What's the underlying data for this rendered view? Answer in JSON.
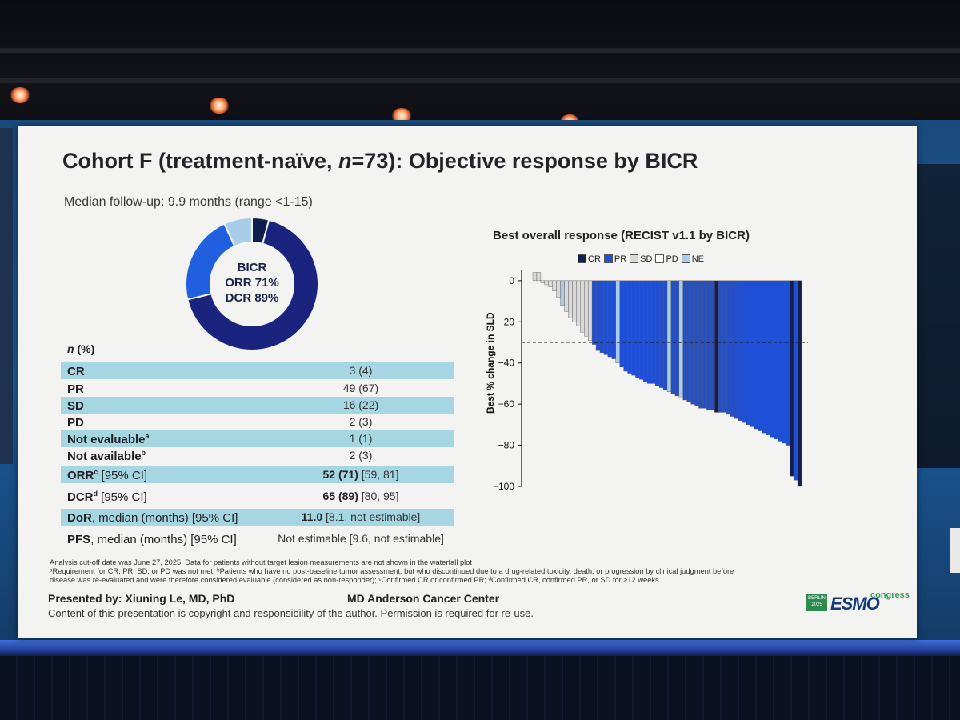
{
  "slide": {
    "title_prefix": "Cohort F (treatment-naïve, ",
    "title_n": "n",
    "title_suffix": "=73): Objective response by BICR",
    "followup": "Median follow-up: 9.9 months (range <1-15)",
    "donut": {
      "label1": "BICR",
      "label2": "ORR 71%",
      "label3": "DCR 89%",
      "segments": [
        {
          "name": "CR",
          "value": 3,
          "color": "#0d1f4a"
        },
        {
          "name": "PR",
          "value": 49,
          "color": "#1a237e"
        },
        {
          "name": "SD",
          "value": 16,
          "color": "#1f5fe0"
        },
        {
          "name": "Other",
          "value": 5,
          "color": "#a9cde6"
        }
      ]
    },
    "table": {
      "header_n": "n",
      "header_pct": " (%)",
      "rows": [
        {
          "label": "CR",
          "sup": "",
          "suffix": "",
          "value": "3 (4)",
          "bold_value": "",
          "highlight": true
        },
        {
          "label": "PR",
          "sup": "",
          "suffix": "",
          "value": "49 (67)",
          "bold_value": "",
          "highlight": false
        },
        {
          "label": "SD",
          "sup": "",
          "suffix": "",
          "value": "16 (22)",
          "bold_value": "",
          "highlight": true
        },
        {
          "label": "PD",
          "sup": "",
          "suffix": "",
          "value": "2 (3)",
          "bold_value": "",
          "highlight": false
        },
        {
          "label": "Not evaluable",
          "sup": "a",
          "suffix": "",
          "value": "1 (1)",
          "bold_value": "",
          "highlight": true
        },
        {
          "label": "Not available",
          "sup": "b",
          "suffix": "",
          "value": "2 (3)",
          "bold_value": "",
          "highlight": false
        },
        {
          "label": "ORR",
          "sup": "c",
          "suffix": " [95% CI]",
          "value": " [59, 81]",
          "bold_value": "52 (71)",
          "highlight": true
        },
        {
          "label": "DCR",
          "sup": "d",
          "suffix": " [95% CI]",
          "value": " [80, 95]",
          "bold_value": "65 (89)",
          "highlight": false
        },
        {
          "label": "DoR",
          "sup": "",
          "suffix": ", median (months) [95% CI]",
          "value": " [8.1, not estimable]",
          "bold_value": "11.0",
          "highlight": true
        },
        {
          "label": "PFS",
          "sup": "",
          "suffix": ", median (months) [95% CI]",
          "value": "Not estimable [9.6, not estimable]",
          "bold_value": "",
          "highlight": false
        }
      ]
    },
    "footnotes": {
      "line1": "Analysis cut-off date was June 27, 2025. Data for patients without target lesion measurements are not shown in the waterfall plot",
      "line2": "ᵃRequirement for CR, PR, SD, or PD was not met; ᵇPatients who have no post-baseline tumor assessment, but who discontinued due to a drug-related toxicity, death, or progression by clinical judgment before disease was re-evaluated and were therefore considered evaluable (considered as non-responder); ᶜConfirmed CR or confirmed PR; ᵈConfirmed CR, confirmed PR, or SD for ≥12 weeks"
    },
    "presenter": "Presented by: Xiuning Le, MD, PhD",
    "institution": "MD Anderson Cancer Center",
    "copyright": "Content of this presentation is copyright and responsibility of the author. Permission is required for re-use.",
    "logo": {
      "city": "BERLIN 2025",
      "word": "ESMO",
      "sub": "congress"
    }
  },
  "chart_data": {
    "type": "bar",
    "title": "Best overall response (RECIST v1.1 by BICR)",
    "xlabel": "",
    "ylabel": "Best % change in SLD",
    "ylim": [
      -100,
      5
    ],
    "yticks": [
      0,
      -20,
      -40,
      -60,
      -80,
      -100
    ],
    "reference_line": -30,
    "legend": [
      {
        "name": "CR",
        "color": "#14204a"
      },
      {
        "name": "PR",
        "color": "#1f4fd6"
      },
      {
        "name": "SD",
        "color": "#d9d9d9"
      },
      {
        "name": "PD",
        "color": "#ffffff"
      },
      {
        "name": "NE",
        "color": "#a9cde6"
      }
    ],
    "values": [
      4,
      4,
      -1,
      -2,
      -3,
      -5,
      -8,
      -12,
      -15,
      -18,
      -20,
      -22,
      -25,
      -27,
      -29,
      -31,
      -34,
      -35,
      -36,
      -37,
      -38,
      -40,
      -42,
      -44,
      -45,
      -46,
      -47,
      -48,
      -49,
      -50,
      -50,
      -51,
      -52,
      -53,
      -54,
      -55,
      -56,
      -57,
      -58,
      -59,
      -60,
      -61,
      -62,
      -62,
      -63,
      -63,
      -64,
      -64,
      -64,
      -65,
      -66,
      -67,
      -68,
      -69,
      -70,
      -71,
      -72,
      -73,
      -74,
      -75,
      -76,
      -77,
      -78,
      -79,
      -80,
      -95,
      -97,
      -100
    ],
    "categories": [
      "SD",
      "SD",
      "SD",
      "SD",
      "SD",
      "SD",
      "SD",
      "NE",
      "SD",
      "SD",
      "SD",
      "SD",
      "SD",
      "SD",
      "SD",
      "PR",
      "PR",
      "PR",
      "PR",
      "PR",
      "PR",
      "NE",
      "PR",
      "PR",
      "PR",
      "PR",
      "PR",
      "PR",
      "PR",
      "PR",
      "PR",
      "PR",
      "PR",
      "PR",
      "NE",
      "PR",
      "PR",
      "NE",
      "PR",
      "PR",
      "PR",
      "PR",
      "PR",
      "PR",
      "PR",
      "PR",
      "CR",
      "PR",
      "PR",
      "PR",
      "PR",
      "PR",
      "PR",
      "PR",
      "PR",
      "PR",
      "PR",
      "PR",
      "PR",
      "PR",
      "PR",
      "PR",
      "PR",
      "PR",
      "PR",
      "CR",
      "PR",
      "CR"
    ]
  }
}
